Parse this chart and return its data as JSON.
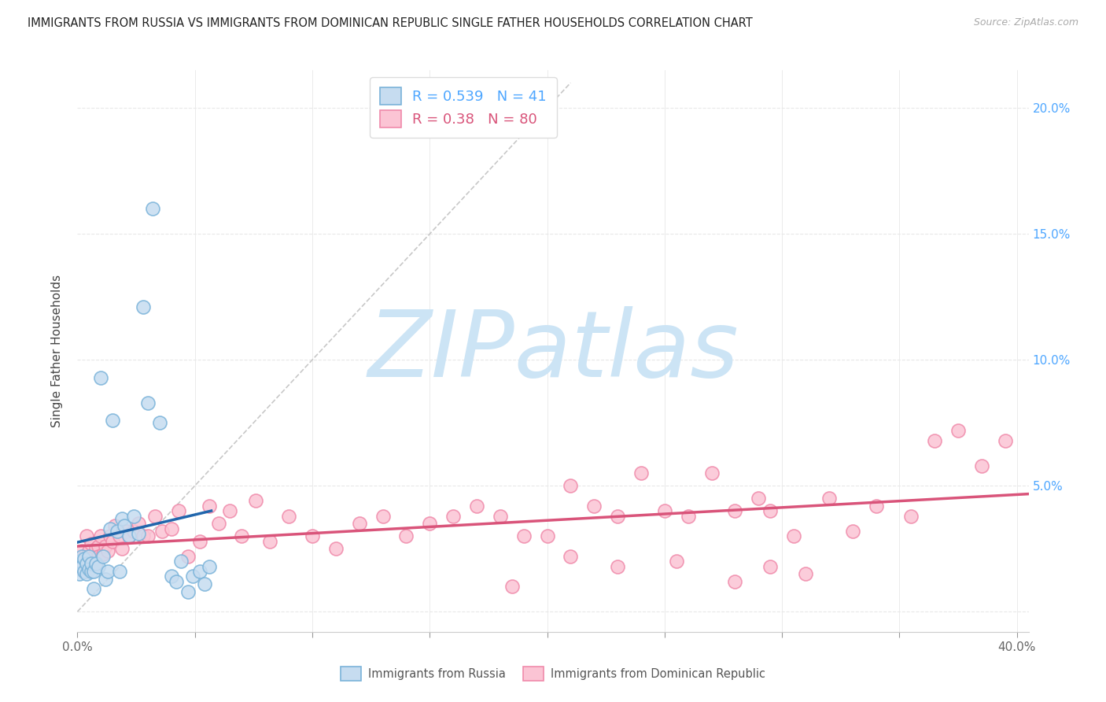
{
  "title": "IMMIGRANTS FROM RUSSIA VS IMMIGRANTS FROM DOMINICAN REPUBLIC SINGLE FATHER HOUSEHOLDS CORRELATION CHART",
  "source": "Source: ZipAtlas.com",
  "ylabel": "Single Father Households",
  "xlim": [
    0.0,
    0.405
  ],
  "ylim": [
    -0.008,
    0.215
  ],
  "russia_R": 0.539,
  "russia_N": 41,
  "dr_R": 0.38,
  "dr_N": 80,
  "russia_fill_color": "#c6dcf0",
  "russia_edge_color": "#7ab3d9",
  "dr_fill_color": "#fbc4d4",
  "dr_edge_color": "#f08aaa",
  "russia_line_color": "#2166ac",
  "dr_line_color": "#d9547a",
  "ref_line_color": "#c8c8c8",
  "watermark_color": "#cce4f5",
  "background_color": "#ffffff",
  "grid_color": "#e8e8e8",
  "russia_x": [
    0.001,
    0.001,
    0.002,
    0.002,
    0.003,
    0.003,
    0.004,
    0.004,
    0.005,
    0.005,
    0.006,
    0.006,
    0.007,
    0.007,
    0.008,
    0.009,
    0.01,
    0.011,
    0.012,
    0.013,
    0.014,
    0.015,
    0.017,
    0.018,
    0.019,
    0.02,
    0.022,
    0.024,
    0.026,
    0.028,
    0.03,
    0.032,
    0.035,
    0.04,
    0.042,
    0.044,
    0.047,
    0.049,
    0.052,
    0.054,
    0.056
  ],
  "russia_y": [
    0.02,
    0.015,
    0.022,
    0.018,
    0.021,
    0.016,
    0.015,
    0.019,
    0.017,
    0.022,
    0.016,
    0.019,
    0.009,
    0.016,
    0.019,
    0.018,
    0.093,
    0.022,
    0.013,
    0.016,
    0.033,
    0.076,
    0.032,
    0.016,
    0.037,
    0.034,
    0.03,
    0.038,
    0.031,
    0.121,
    0.083,
    0.16,
    0.075,
    0.014,
    0.012,
    0.02,
    0.008,
    0.014,
    0.016,
    0.011,
    0.018
  ],
  "dr_x": [
    0.001,
    0.002,
    0.002,
    0.003,
    0.003,
    0.004,
    0.005,
    0.005,
    0.006,
    0.007,
    0.007,
    0.008,
    0.008,
    0.009,
    0.009,
    0.01,
    0.011,
    0.012,
    0.013,
    0.014,
    0.015,
    0.016,
    0.018,
    0.019,
    0.021,
    0.022,
    0.024,
    0.026,
    0.028,
    0.03,
    0.033,
    0.036,
    0.04,
    0.043,
    0.047,
    0.052,
    0.056,
    0.06,
    0.065,
    0.07,
    0.076,
    0.082,
    0.09,
    0.1,
    0.11,
    0.12,
    0.13,
    0.14,
    0.15,
    0.16,
    0.17,
    0.18,
    0.19,
    0.2,
    0.21,
    0.22,
    0.23,
    0.24,
    0.25,
    0.26,
    0.27,
    0.28,
    0.29,
    0.295,
    0.305,
    0.32,
    0.33,
    0.34,
    0.355,
    0.365,
    0.375,
    0.385,
    0.395,
    0.31,
    0.295,
    0.28,
    0.255,
    0.23,
    0.21,
    0.185
  ],
  "dr_y": [
    0.02,
    0.024,
    0.018,
    0.022,
    0.016,
    0.03,
    0.024,
    0.019,
    0.027,
    0.022,
    0.019,
    0.025,
    0.019,
    0.026,
    0.022,
    0.03,
    0.023,
    0.026,
    0.024,
    0.03,
    0.028,
    0.034,
    0.03,
    0.025,
    0.032,
    0.03,
    0.032,
    0.035,
    0.03,
    0.03,
    0.038,
    0.032,
    0.033,
    0.04,
    0.022,
    0.028,
    0.042,
    0.035,
    0.04,
    0.03,
    0.044,
    0.028,
    0.038,
    0.03,
    0.025,
    0.035,
    0.038,
    0.03,
    0.035,
    0.038,
    0.042,
    0.038,
    0.03,
    0.03,
    0.05,
    0.042,
    0.038,
    0.055,
    0.04,
    0.038,
    0.055,
    0.04,
    0.045,
    0.04,
    0.03,
    0.045,
    0.032,
    0.042,
    0.038,
    0.068,
    0.072,
    0.058,
    0.068,
    0.015,
    0.018,
    0.012,
    0.02,
    0.018,
    0.022,
    0.01
  ]
}
